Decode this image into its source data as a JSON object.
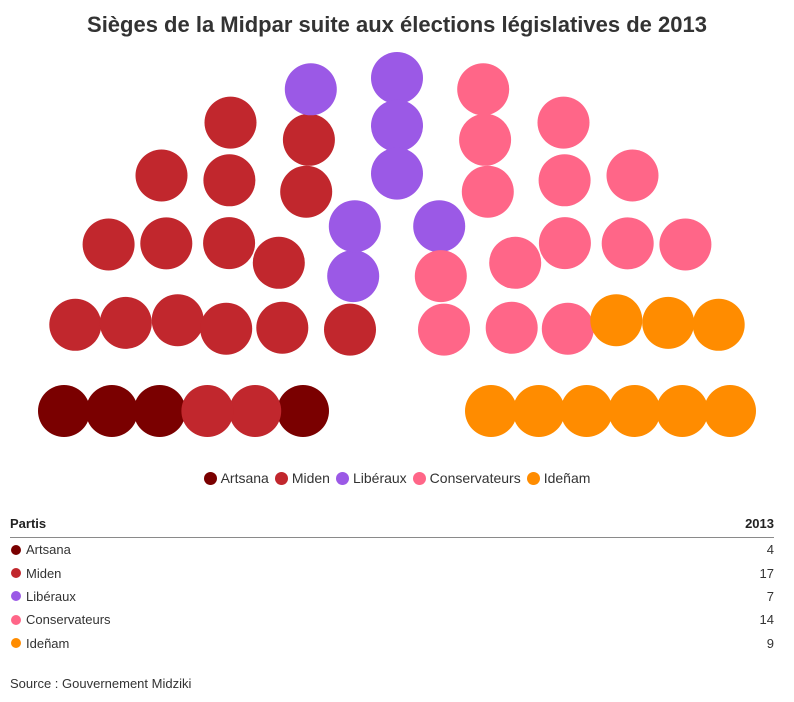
{
  "title": "Sièges de la Midpar suite aux élections législatives de 2013",
  "chart_data": {
    "type": "parliament",
    "total_seats": 51,
    "parties": [
      {
        "name": "Artsana",
        "seats": 4,
        "color": "#7a0000"
      },
      {
        "name": "Miden",
        "seats": 17,
        "color": "#c1272d"
      },
      {
        "name": "Libéraux",
        "seats": 7,
        "color": "#9b59e6"
      },
      {
        "name": "Conservateurs",
        "seats": 14,
        "color": "#ff6688"
      },
      {
        "name": "Ideñam",
        "seats": 9,
        "color": "#ff8c00"
      }
    ]
  },
  "table": {
    "header_party": "Partis",
    "header_year": "2013",
    "rows": [
      {
        "name": "Artsana",
        "value": "4",
        "color": "#7a0000"
      },
      {
        "name": "Miden",
        "value": "17",
        "color": "#c1272d"
      },
      {
        "name": "Libéraux",
        "value": "7",
        "color": "#9b59e6"
      },
      {
        "name": "Conservateurs",
        "value": "14",
        "color": "#ff6688"
      },
      {
        "name": "Ideñam",
        "value": "9",
        "color": "#ff8c00"
      }
    ]
  },
  "source": "Source : Gouvernement Midziki"
}
